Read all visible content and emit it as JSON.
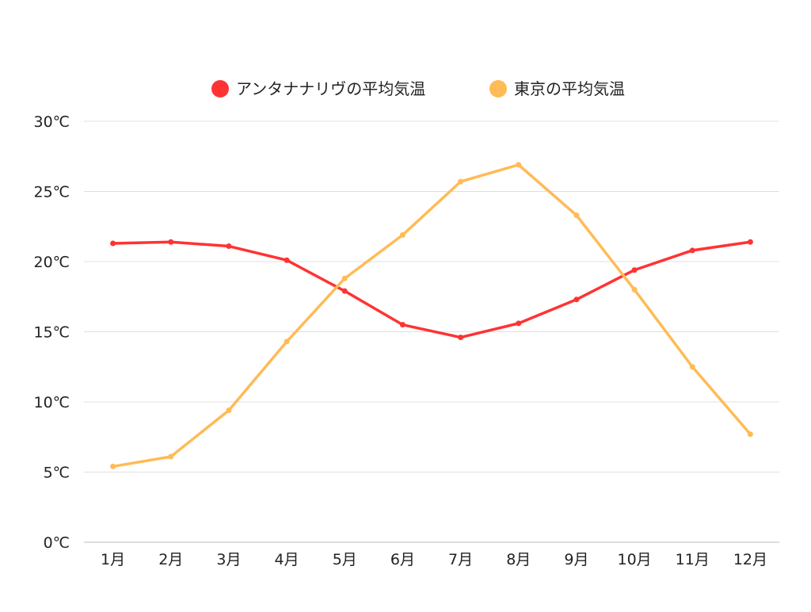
{
  "chart_data": {
    "type": "line",
    "title": "",
    "xlabel": "",
    "ylabel": "",
    "categories": [
      "1月",
      "2月",
      "3月",
      "4月",
      "5月",
      "6月",
      "7月",
      "8月",
      "9月",
      "10月",
      "11月",
      "12月"
    ],
    "ylim": [
      0,
      30
    ],
    "yticks": [
      0,
      5,
      10,
      15,
      20,
      25,
      30
    ],
    "ytick_labels": [
      "0℃",
      "5℃",
      "10℃",
      "15℃",
      "20℃",
      "25℃",
      "30℃"
    ],
    "grid": true,
    "legend_position": "top",
    "series": [
      {
        "name": "アンタナナリヴの平均気温",
        "color": "#ff3333",
        "values": [
          21.3,
          21.4,
          21.1,
          20.1,
          17.9,
          15.5,
          14.6,
          15.6,
          17.3,
          19.4,
          20.8,
          21.4
        ]
      },
      {
        "name": "東京の平均気温",
        "color": "#ffbb55",
        "values": [
          5.4,
          6.1,
          9.4,
          14.3,
          18.8,
          21.9,
          25.7,
          26.9,
          23.3,
          18.0,
          12.5,
          7.7
        ]
      }
    ]
  }
}
